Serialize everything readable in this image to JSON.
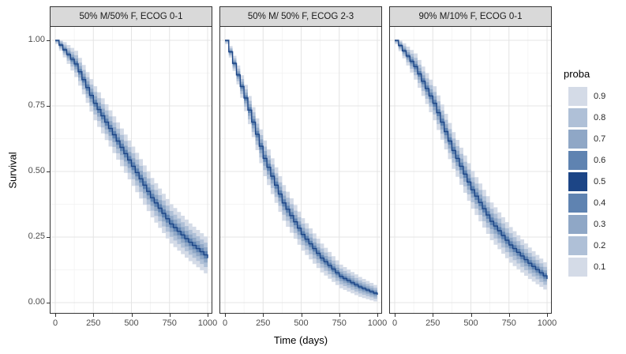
{
  "chart_data": {
    "type": "area",
    "subtype": "survival-fan-chart-faceted",
    "title": "",
    "xlabel": "Time (days)",
    "ylabel": "Survival",
    "x_ticks": [
      "0",
      "250",
      "500",
      "750",
      "1000"
    ],
    "y_ticks": [
      "1.00",
      "0.75",
      "0.50",
      "0.25",
      "0.00"
    ],
    "xlim": [
      0,
      1000
    ],
    "ylim": [
      0,
      1
    ],
    "grid": "major+minor",
    "legend_position": "right",
    "times": [
      0,
      125,
      250,
      375,
      500,
      625,
      750,
      875,
      1000
    ],
    "facets": [
      {
        "label": "50% M/50% F, ECOG 0-1",
        "median": [
          1.0,
          0.91,
          0.76,
          0.64,
          0.52,
          0.4,
          0.3,
          0.23,
          0.17
        ],
        "band_halfwidth_q09": [
          0.015,
          0.05,
          0.065,
          0.07,
          0.075,
          0.075,
          0.075,
          0.072,
          0.07
        ]
      },
      {
        "label": "50% M/ 50% F, ECOG 2-3",
        "median": [
          1.0,
          0.78,
          0.55,
          0.38,
          0.26,
          0.17,
          0.1,
          0.06,
          0.03
        ],
        "band_halfwidth_q09": [
          0.015,
          0.05,
          0.068,
          0.068,
          0.062,
          0.055,
          0.045,
          0.038,
          0.03
        ]
      },
      {
        "label": "90% M/10% F, ECOG 0-1",
        "median": [
          1.0,
          0.9,
          0.76,
          0.58,
          0.43,
          0.31,
          0.22,
          0.15,
          0.09
        ],
        "band_halfwidth_q09": [
          0.015,
          0.05,
          0.065,
          0.07,
          0.072,
          0.072,
          0.068,
          0.06,
          0.05
        ]
      }
    ],
    "legend": {
      "title": "proba",
      "entries": [
        {
          "label": "0.9",
          "color": "#d4dbe7"
        },
        {
          "label": "0.8",
          "color": "#afc0d7"
        },
        {
          "label": "0.7",
          "color": "#8fa7c6"
        },
        {
          "label": "0.6",
          "color": "#5f83b1"
        },
        {
          "label": "0.5",
          "color": "#1c4586"
        },
        {
          "label": "0.4",
          "color": "#5f83b1"
        },
        {
          "label": "0.3",
          "color": "#8fa7c6"
        },
        {
          "label": "0.2",
          "color": "#afc0d7"
        },
        {
          "label": "0.1",
          "color": "#d4dbe7"
        }
      ]
    }
  },
  "theme": {
    "strip_bg": "#d9d9d9",
    "panel_bg": "#ffffff",
    "panel_border": "#333333",
    "grid_major": "#e4e4e4",
    "grid_minor": "#f2f2f2",
    "tick_color": "#333333",
    "tick_label_color": "#4d4d4d",
    "median_line_color": "#1c4586"
  }
}
